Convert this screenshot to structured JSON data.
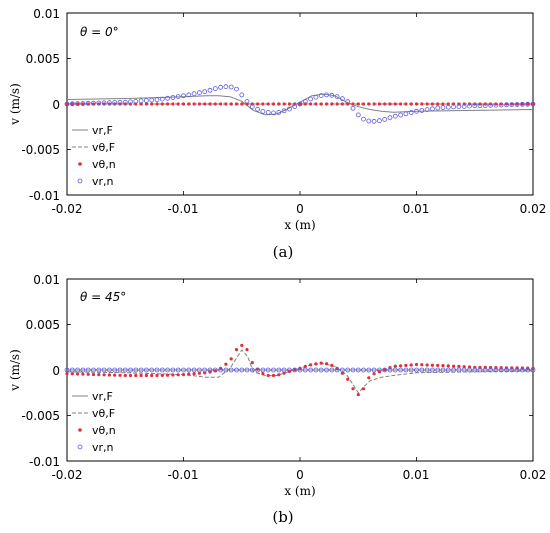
{
  "chart_data": [
    {
      "caption": "(a)",
      "type": "line",
      "annotation": "θ = 0°",
      "xlabel": "x (m)",
      "ylabel": "v (m/s)",
      "xlim": [
        -0.02,
        0.02
      ],
      "ylim": [
        -0.01,
        0.01
      ],
      "xticks": [
        "-0.02",
        "-0.01",
        "0",
        "0.01",
        "0.02"
      ],
      "yticks": [
        "0.01",
        "0.005",
        "0",
        "-0.005",
        "-0.01"
      ],
      "grid": false,
      "legend_position": "bottom-left",
      "series": [
        {
          "name": "vr,F",
          "style": "solid",
          "color": "#808080",
          "x": [
            -0.02,
            -0.015,
            -0.01,
            -0.008,
            -0.007,
            -0.006,
            -0.005,
            -0.004,
            -0.003,
            -0.002,
            -0.001,
            0,
            0.001,
            0.002,
            0.003,
            0.004,
            0.005,
            0.006,
            0.007,
            0.008,
            0.01,
            0.015,
            0.02
          ],
          "y": [
            0.0005,
            0.0006,
            0.0008,
            0.0009,
            0.0009,
            0.0008,
            0.0003,
            -0.0007,
            -0.0012,
            -0.0011,
            -0.0005,
            0.0002,
            0.0009,
            0.0011,
            0.0009,
            0.0002,
            -0.0003,
            -0.0006,
            -0.0008,
            -0.0009,
            -0.0008,
            -0.0007,
            -0.0006
          ]
        },
        {
          "name": "vθ,F",
          "style": "dashed",
          "color": "#808080",
          "x": [
            -0.02,
            0.02
          ],
          "y": [
            0.0,
            0.0
          ]
        },
        {
          "name": "vθ,n",
          "style": "dots",
          "color": "#e0303c",
          "x": [
            -0.02,
            0.02
          ],
          "y": [
            0.0,
            0.0
          ]
        },
        {
          "name": "vr,n",
          "style": "circles",
          "color": "#5a5ae6",
          "x": [
            -0.02,
            -0.015,
            -0.012,
            -0.01,
            -0.008,
            -0.007,
            -0.0065,
            -0.006,
            -0.0055,
            -0.005,
            -0.0045,
            -0.004,
            -0.003,
            -0.002,
            -0.001,
            0,
            0.001,
            0.002,
            0.0025,
            0.003,
            0.004,
            0.0045,
            0.005,
            0.0055,
            0.006,
            0.0065,
            0.007,
            0.008,
            0.01,
            0.012,
            0.015,
            0.02
          ],
          "y": [
            0.0,
            0.0002,
            0.0005,
            0.0009,
            0.0014,
            0.0018,
            0.0019,
            0.0019,
            0.0017,
            0.001,
            0.0002,
            -0.0004,
            -0.0009,
            -0.001,
            -0.0006,
            0.0,
            0.0006,
            0.001,
            0.001,
            0.0009,
            0.0004,
            -0.0004,
            -0.0012,
            -0.0017,
            -0.0019,
            -0.0019,
            -0.0018,
            -0.0014,
            -0.0008,
            -0.0004,
            -0.0002,
            0.0
          ]
        }
      ]
    },
    {
      "caption": "(b)",
      "type": "line",
      "annotation": "θ = 45°",
      "xlabel": "x (m)",
      "ylabel": "v (m/s)",
      "xlim": [
        -0.02,
        0.02
      ],
      "ylim": [
        -0.01,
        0.01
      ],
      "xticks": [
        "-0.02",
        "-0.01",
        "0",
        "0.01",
        "0.02"
      ],
      "yticks": [
        "0.01",
        "0.005",
        "0",
        "-0.005",
        "-0.01"
      ],
      "grid": false,
      "legend_position": "bottom-left",
      "series": [
        {
          "name": "vr,F",
          "style": "solid",
          "color": "#808080",
          "x": [
            -0.02,
            0.02
          ],
          "y": [
            0.0,
            0.0
          ]
        },
        {
          "name": "vθ,F",
          "style": "dashed",
          "color": "#808080",
          "x": [
            -0.02,
            -0.015,
            -0.01,
            -0.008,
            -0.007,
            -0.006,
            -0.0055,
            -0.005,
            -0.0045,
            -0.004,
            -0.003,
            -0.002,
            -0.001,
            0,
            0.001,
            0.002,
            0.003,
            0.004,
            0.0045,
            0.005,
            0.0055,
            0.006,
            0.007,
            0.008,
            0.01,
            0.015,
            0.02
          ],
          "y": [
            -0.0002,
            -0.0003,
            -0.0005,
            -0.0008,
            -0.0008,
            0.0002,
            0.0012,
            0.0022,
            0.0015,
            -0.0002,
            -0.0006,
            -0.0006,
            -0.0002,
            0.0002,
            0.0006,
            0.0007,
            0.0004,
            -0.0005,
            -0.0015,
            -0.0025,
            -0.0018,
            -0.0012,
            -0.0008,
            -0.0006,
            -0.0003,
            -0.0002,
            -0.0001
          ]
        },
        {
          "name": "vθ,n",
          "style": "dots",
          "color": "#e0303c",
          "x": [
            -0.02,
            -0.015,
            -0.012,
            -0.01,
            -0.008,
            -0.007,
            -0.006,
            -0.0055,
            -0.005,
            -0.0045,
            -0.004,
            -0.003,
            -0.002,
            -0.001,
            0,
            0.001,
            0.002,
            0.003,
            0.004,
            0.0045,
            0.005,
            0.0055,
            0.006,
            0.008,
            0.01,
            0.012,
            0.015,
            0.02
          ],
          "y": [
            -0.0004,
            -0.0006,
            -0.0006,
            -0.0005,
            -0.0003,
            0.0,
            0.001,
            0.0022,
            0.0027,
            0.0022,
            0.0005,
            -0.0006,
            -0.0006,
            -0.0002,
            0.0002,
            0.0006,
            0.0008,
            0.0004,
            -0.0008,
            -0.002,
            -0.0027,
            -0.002,
            -0.0006,
            0.0004,
            0.0006,
            0.0005,
            0.0003,
            0.0002
          ]
        },
        {
          "name": "vr,n",
          "style": "circles",
          "color": "#5a5ae6",
          "x": [
            -0.02,
            0.02
          ],
          "y": [
            0.0,
            0.0
          ]
        }
      ]
    }
  ]
}
